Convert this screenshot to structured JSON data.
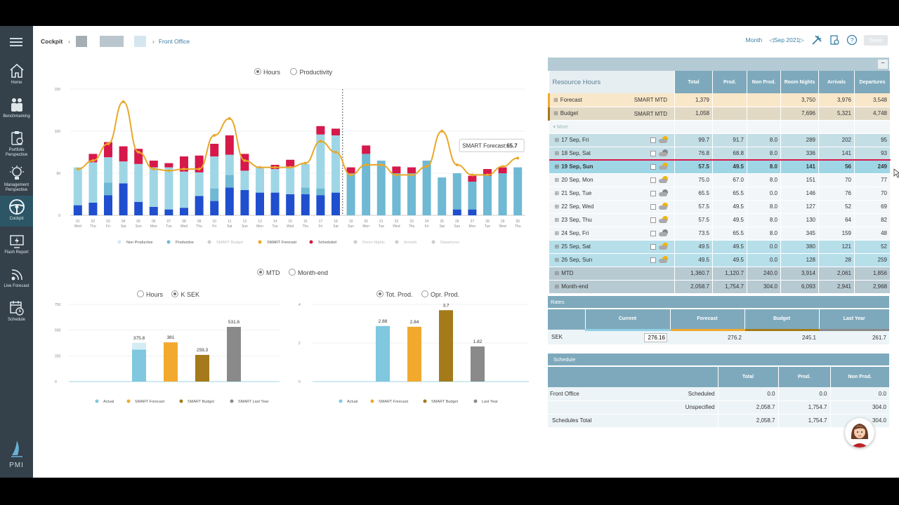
{
  "nav": {
    "home": "Home",
    "benchmarking": "Benchmarking",
    "portfolio": [
      "Portfolio",
      "Perspective"
    ],
    "management": [
      "Management",
      "Perspective"
    ],
    "cockpit": "Cockpit",
    "flash": "Flash Report",
    "live": "Live Forecast",
    "schedule": "Schedule",
    "brand": "PMI"
  },
  "breadcrumb": {
    "root": "Cockpit",
    "leaf": "Front Office"
  },
  "toolbar": {
    "period": "Month",
    "date": "Sep 2021",
    "save": "Save"
  },
  "hours_toggle": {
    "hours": "Hours",
    "productivity": "Productivity"
  },
  "top_chart": {
    "chart_data": {
      "type": "bar",
      "title": "",
      "ylim": [
        0,
        150
      ],
      "yticks": [
        "150",
        "100",
        "50",
        "0"
      ],
      "categories": [
        "01",
        "02",
        "03",
        "04",
        "05",
        "06",
        "07",
        "08",
        "09",
        "10",
        "11",
        "12",
        "13",
        "14",
        "15",
        "16",
        "17",
        "18",
        "19",
        "20",
        "21",
        "22",
        "23",
        "24",
        "25",
        "26",
        "27",
        "28",
        "29",
        "30"
      ],
      "weekdays": [
        "Wed",
        "Thu",
        "Fri",
        "Sat",
        "Sun",
        "Mon",
        "Tue",
        "Wed",
        "Thu",
        "Fri",
        "Sat",
        "Sun",
        "Mon",
        "Tue",
        "Wed",
        "Thu",
        "Fri",
        "Sat",
        "Sun",
        "Mon",
        "Tue",
        "Wed",
        "Thu",
        "Fri",
        "Sat",
        "Sun",
        "Mon",
        "Tue",
        "Wed",
        "Thu"
      ],
      "actual_days": 18,
      "series": [
        {
          "name": "Productive (dark)",
          "values": [
            12,
            15,
            24,
            38,
            16,
            10,
            7,
            9,
            23,
            17,
            33,
            30,
            27,
            27,
            25,
            25,
            24,
            27,
            0,
            0,
            0,
            0,
            0,
            0,
            0,
            7,
            7,
            0,
            0,
            0
          ]
        },
        {
          "name": "Productive",
          "values": [
            0,
            0,
            15,
            0,
            0,
            0,
            0,
            0,
            0,
            15,
            15,
            0,
            0,
            0,
            0,
            8,
            8,
            0,
            0,
            0,
            0,
            0,
            0,
            0,
            0,
            0,
            0,
            0,
            0,
            0
          ]
        },
        {
          "name": "Non Productive",
          "values": [
            45,
            48,
            30,
            26,
            45,
            47,
            50,
            43,
            28,
            38,
            24,
            23,
            30,
            28,
            33,
            28,
            64,
            68,
            50,
            73,
            65,
            50,
            50,
            65,
            45,
            43,
            33,
            47,
            50,
            57
          ]
        },
        {
          "name": "Scheduled",
          "values": [
            0,
            10,
            18,
            18,
            18,
            8,
            5,
            18,
            20,
            15,
            23,
            20,
            0,
            5,
            8,
            0,
            10,
            8,
            7,
            10,
            0,
            8,
            7,
            0,
            0,
            0,
            7,
            8,
            7,
            0
          ]
        }
      ],
      "forecast": [
        55,
        65,
        85,
        135,
        75,
        55,
        53,
        55,
        55,
        95,
        115,
        65,
        57,
        57,
        57,
        62,
        88,
        75,
        48,
        60,
        60,
        48,
        48,
        58,
        100,
        60,
        48,
        48,
        58,
        68
      ],
      "forecast_label": "SMART Forecast",
      "forecast_value": "65.7",
      "legend": [
        "Non Productive",
        "Productive",
        "SMART Budget",
        "SMART Forecast",
        "Scheduled",
        "Room Nights",
        "Arrivals",
        "Departures"
      ],
      "colors": {
        "dark": "#1f4fcf",
        "productive": "#6fb9d4",
        "nonprod": "#9fd6e6",
        "scheduled": "#d6194a",
        "forecast": "#e8a829"
      }
    }
  },
  "mtd_toggle": {
    "mtd": "MTD",
    "month_end": "Month-end"
  },
  "unit_toggle": {
    "hours": "Hours",
    "ksek": "K SEK"
  },
  "prod_toggle": {
    "tot": "Tot. Prod.",
    "opr": "Opr. Prod."
  },
  "left_chart": {
    "chart_data": {
      "type": "bar",
      "ylim": [
        0,
        750
      ],
      "yticks": [
        "750",
        "500",
        "250",
        "0"
      ],
      "categories": [
        "Actual",
        "SMART Forecast",
        "SMART Budget",
        "SMART Last Year"
      ],
      "values": [
        375.8,
        381,
        259.3,
        531.6
      ],
      "labels": [
        "375.8",
        "381",
        "259,3",
        "531,6"
      ],
      "colors": [
        "#7fc8df",
        "#f2a92e",
        "#a47a1a",
        "#8a8a8a"
      ]
    }
  },
  "right_chart": {
    "chart_data": {
      "type": "bar",
      "ylim": [
        0,
        4
      ],
      "yticks": [
        "4",
        "2",
        "0"
      ],
      "categories": [
        "Actual",
        "SMART Forecast",
        "SMART Budget",
        "Last Year"
      ],
      "values": [
        2.88,
        2.84,
        3.7,
        1.82
      ],
      "labels": [
        "2.88",
        "2.84",
        "3,7",
        "1.82"
      ],
      "colors": [
        "#7fc8df",
        "#f2a92e",
        "#a47a1a",
        "#8a8a8a"
      ]
    }
  },
  "resource": {
    "title": "Resource Hours",
    "headers": [
      "Total",
      "Prod.",
      "Non Prod.",
      "Room Nights",
      "Arrivals",
      "Departures"
    ],
    "more": "More",
    "rows": [
      {
        "label": "Forecast",
        "sub": "SMART MTD",
        "kind": "forecast",
        "vals": [
          "1,379",
          "",
          "",
          "3,750",
          "3,976",
          "3,548"
        ]
      },
      {
        "label": "Budget",
        "sub": "SMART MTD",
        "kind": "budget",
        "vals": [
          "1,058",
          "",
          "",
          "7,696",
          "5,321",
          "4,748"
        ]
      },
      {
        "label": "17 Sep, Fri",
        "kind": "teal",
        "vals": [
          "99.7",
          "91.7",
          "8.0",
          "289",
          "202",
          "95"
        ]
      },
      {
        "label": "18 Sep, Sat",
        "kind": "teal",
        "vals": [
          "76.8",
          "68.8",
          "8.0",
          "336",
          "141",
          "93"
        ]
      },
      {
        "label": "19 Sep, Sun",
        "kind": "sel",
        "vals": [
          "57.5",
          "49.5",
          "8.0",
          "141",
          "56",
          "249"
        ]
      },
      {
        "label": "20 Sep, Mon",
        "kind": "plain",
        "vals": [
          "75.0",
          "67.0",
          "8.0",
          "151",
          "70",
          "77"
        ]
      },
      {
        "label": "21 Sep, Tue",
        "kind": "plain",
        "vals": [
          "65.5",
          "65.5",
          "0.0",
          "146",
          "76",
          "70"
        ]
      },
      {
        "label": "22 Sep, Wed",
        "kind": "plain",
        "vals": [
          "57.5",
          "49.5",
          "8.0",
          "127",
          "52",
          "69"
        ]
      },
      {
        "label": "23 Sep, Thu",
        "kind": "plain",
        "vals": [
          "57.5",
          "49.5",
          "8.0",
          "130",
          "64",
          "82"
        ]
      },
      {
        "label": "24 Sep, Fri",
        "kind": "plain",
        "vals": [
          "73.5",
          "65.5",
          "8.0",
          "345",
          "159",
          "48"
        ]
      },
      {
        "label": "25 Sep, Sat",
        "kind": "blue",
        "vals": [
          "49.5",
          "49.5",
          "0.0",
          "380",
          "121",
          "52"
        ]
      },
      {
        "label": "26 Sep, Sun",
        "kind": "blue",
        "vals": [
          "49.5",
          "49.5",
          "0.0",
          "128",
          "28",
          "259"
        ]
      },
      {
        "label": "MTD",
        "kind": "total",
        "vals": [
          "1,360.7",
          "1,120.7",
          "240.0",
          "3,914",
          "2,061",
          "1,856"
        ]
      },
      {
        "label": "Month-end",
        "kind": "total",
        "vals": [
          "2,058.7",
          "1,754.7",
          "304.0",
          "6,093",
          "2,941",
          "2,968"
        ]
      }
    ]
  },
  "rates": {
    "title": "Rates",
    "headers": [
      "Current",
      "Forecast",
      "Budget",
      "Last Year"
    ],
    "row": {
      "label": "SEK",
      "current": "276.16",
      "forecast": "276.2",
      "budget": "245.1",
      "last_year": "261.7"
    }
  },
  "schedule": {
    "title": "Schedule",
    "headers": [
      "Total",
      "Prod.",
      "Non Prod."
    ],
    "dept": "Front Office",
    "rows": [
      {
        "label": "Scheduled",
        "vals": [
          "0.0",
          "0.0",
          "0.0"
        ]
      },
      {
        "label": "Unspecified",
        "vals": [
          "2,058.7",
          "1,754.7",
          "304.0"
        ]
      }
    ],
    "total": {
      "label": "Schedules Total",
      "vals": [
        "2,058.7",
        "1,754.7",
        "304.0"
      ]
    }
  }
}
